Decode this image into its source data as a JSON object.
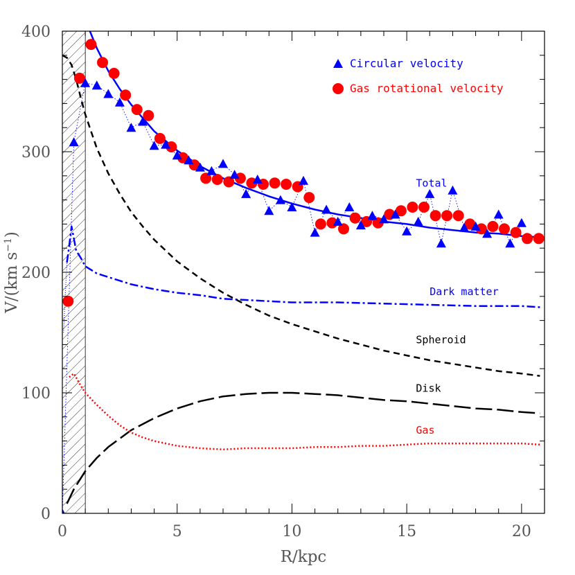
{
  "chart_data": {
    "type": "line",
    "x_label": "R/kpc",
    "y_label_main": "V/(km s",
    "y_label_sup": "−1",
    "y_label_close": ")",
    "xlim": [
      0,
      21
    ],
    "ylim": [
      0,
      400
    ],
    "x_ticks": [
      0,
      5,
      10,
      15,
      20
    ],
    "y_ticks": [
      0,
      100,
      200,
      300,
      400
    ],
    "x_tick_labels": [
      "0",
      "5",
      "10",
      "15",
      "20"
    ],
    "y_tick_labels": [
      "0",
      "100",
      "200",
      "300",
      "400"
    ],
    "x_minor_step": 1,
    "y_minor_step": 20,
    "shaded_region": {
      "x_from": 0,
      "x_to": 1
    },
    "legend": [
      {
        "label": "Circular velocity",
        "marker": "triangle",
        "color": "#0000ff"
      },
      {
        "label": "Gas rotational velocity",
        "marker": "circle",
        "color": "#ff0000"
      }
    ],
    "circular_velocity": {
      "name": "Circular velocity",
      "color": "#0000ff",
      "x": [
        0,
        0.5,
        1.0,
        1.5,
        2.0,
        2.5,
        3.0,
        3.5,
        4.0,
        4.5,
        5.0,
        5.5,
        6.0,
        6.5,
        7.0,
        7.5,
        8.0,
        8.5,
        9.0,
        9.5,
        10.0,
        10.5,
        11.0,
        11.5,
        12.0,
        12.5,
        13.0,
        13.5,
        14.0,
        14.5,
        15.0,
        15.5,
        16.0,
        16.5,
        17.0,
        17.5,
        18.0,
        18.5,
        19.0,
        19.5,
        20.0
      ],
      "y": [
        0,
        308,
        357,
        355,
        348,
        341,
        320,
        325,
        305,
        306,
        297,
        293,
        287,
        284,
        290,
        281,
        265,
        277,
        251,
        260,
        254,
        276,
        233,
        252,
        242,
        254,
        239,
        247,
        244,
        248,
        234,
        242,
        265,
        224,
        268,
        237,
        238,
        232,
        248,
        224,
        241
      ]
    },
    "gas_rotational_velocity": {
      "name": "Gas rotational velocity",
      "color": "#ff0000",
      "x": [
        0.25,
        0.75,
        1.25,
        1.75,
        2.25,
        2.75,
        3.25,
        3.75,
        4.25,
        4.75,
        5.25,
        5.75,
        6.25,
        6.75,
        7.25,
        7.75,
        8.25,
        8.75,
        9.25,
        9.75,
        10.25,
        10.75,
        11.25,
        11.75,
        12.25,
        12.75,
        13.25,
        13.75,
        14.25,
        14.75,
        15.25,
        15.75,
        16.25,
        16.75,
        17.25,
        17.75,
        18.25,
        18.75,
        19.25,
        19.75,
        20.25,
        20.75
      ],
      "y": [
        176,
        361,
        389,
        374,
        365,
        347,
        335,
        330,
        311,
        304,
        295,
        289,
        278,
        277,
        275,
        278,
        274,
        273,
        274,
        273,
        271,
        262,
        240,
        241,
        236,
        245,
        242,
        241,
        248,
        251,
        254,
        254,
        247,
        247,
        247,
        240,
        236,
        238,
        236,
        233,
        228,
        228
      ]
    },
    "curves": [
      {
        "name": "Total",
        "label": "Total",
        "color": "#0000ff",
        "style": "solid",
        "x": [
          1.2,
          1.5,
          2,
          2.5,
          3,
          3.5,
          4,
          5,
          6,
          7,
          8,
          9,
          10,
          11,
          12,
          13,
          14,
          15,
          16,
          17,
          18,
          19,
          20,
          20.8
        ],
        "y": [
          400,
          386,
          367,
          352,
          339,
          328,
          317,
          301,
          288,
          278,
          270,
          263,
          257,
          252,
          248,
          245,
          242,
          240,
          237,
          235,
          233,
          232,
          230,
          229
        ]
      },
      {
        "name": "Dark matter",
        "label": "Dark matter",
        "color": "#0000ff",
        "style": "dashdot",
        "x": [
          0.2,
          0.3,
          0.4,
          0.5,
          0.6,
          0.8,
          1,
          1.5,
          2,
          2.5,
          3,
          4,
          5,
          6,
          7,
          8,
          9,
          10,
          12,
          14,
          16,
          18,
          20,
          20.8
        ],
        "y": [
          208,
          222,
          238,
          228,
          218,
          212,
          205,
          199,
          196,
          193,
          190,
          186,
          183,
          181,
          178,
          177,
          176,
          175,
          175,
          174,
          173,
          172,
          172,
          171
        ],
        "faint_prefix": {
          "x": [
            0.05,
            0.15,
            0.2
          ],
          "y": [
            150,
            190,
            208
          ]
        }
      },
      {
        "name": "Spheroid",
        "label": "Spheroid",
        "color": "#000000",
        "style": "dashed",
        "x": [
          0,
          0.2,
          0.4,
          0.6,
          0.8,
          1,
          1.5,
          2,
          2.5,
          3,
          3.5,
          4,
          5,
          6,
          7,
          8,
          9,
          10,
          11,
          12,
          13,
          14,
          15,
          16,
          17,
          18,
          19,
          20,
          20.8
        ],
        "y": [
          380,
          378,
          372,
          360,
          345,
          331,
          303,
          282,
          265,
          250,
          238,
          227,
          209,
          195,
          183,
          173,
          164,
          157,
          151,
          145,
          140,
          135,
          131,
          127,
          124,
          121,
          118,
          116,
          114
        ]
      },
      {
        "name": "Disk",
        "label": "Disk",
        "color": "#000000",
        "style": "longdash",
        "x": [
          0.2,
          0.5,
          1,
          1.5,
          2,
          3,
          4,
          5,
          6,
          7,
          8,
          9,
          10,
          11,
          12,
          13,
          14,
          15,
          16,
          17,
          18,
          19,
          20,
          20.8
        ],
        "y": [
          8,
          20,
          35,
          46,
          55,
          69,
          79,
          87,
          93,
          97,
          99,
          100,
          100,
          99,
          98,
          96,
          94,
          93,
          91,
          89,
          87,
          86,
          84,
          83
        ]
      },
      {
        "name": "Gas",
        "label": "Gas",
        "color": "#ff0000",
        "style": "dotted",
        "x": [
          0.3,
          0.5,
          0.8,
          1,
          1.5,
          2,
          2.5,
          3,
          3.5,
          4,
          5,
          6,
          7,
          8,
          9,
          10,
          11,
          12,
          13,
          14,
          15,
          16,
          17,
          18,
          19,
          20,
          20.8
        ],
        "y": [
          113,
          116,
          106,
          100,
          90,
          81,
          73,
          67,
          63,
          60,
          56,
          54,
          53,
          54,
          54,
          54,
          55,
          55,
          56,
          56,
          57,
          58,
          58,
          58,
          58,
          58,
          57
        ]
      }
    ],
    "curve_labels": [
      {
        "text": "Total",
        "color": "#0000ff",
        "x": 15.4,
        "y": 271
      },
      {
        "text": "Dark matter",
        "color": "#0000ff",
        "x": 16.0,
        "y": 181
      },
      {
        "text": "Spheroid",
        "color": "#000000",
        "x": 15.4,
        "y": 141
      },
      {
        "text": "Disk",
        "color": "#000000",
        "x": 15.4,
        "y": 101
      },
      {
        "text": "Gas",
        "color": "#ff0000",
        "x": 15.4,
        "y": 66
      }
    ]
  }
}
